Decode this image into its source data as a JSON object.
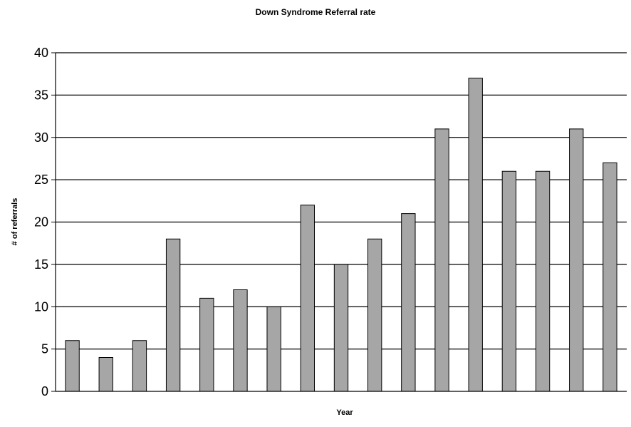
{
  "chart_data": {
    "type": "bar",
    "title": "Down Syndrome Referral rate",
    "xlabel": "Year",
    "ylabel": "# of referrals",
    "categories": [
      "",
      "",
      "",
      "",
      "",
      "",
      "",
      "",
      "",
      "",
      "",
      "",
      "",
      "",
      "",
      "",
      ""
    ],
    "values": [
      6,
      4,
      6,
      18,
      11,
      12,
      10,
      22,
      15,
      18,
      21,
      31,
      37,
      26,
      26,
      31,
      27
    ],
    "ylim": [
      0,
      40
    ],
    "yticks": [
      0,
      5,
      10,
      15,
      20,
      25,
      30,
      35,
      40
    ],
    "grid": true,
    "legend": "none",
    "colors": {
      "bar_fill": "#a6a6a6",
      "bar_stroke": "#000000",
      "grid": "#000000"
    }
  }
}
